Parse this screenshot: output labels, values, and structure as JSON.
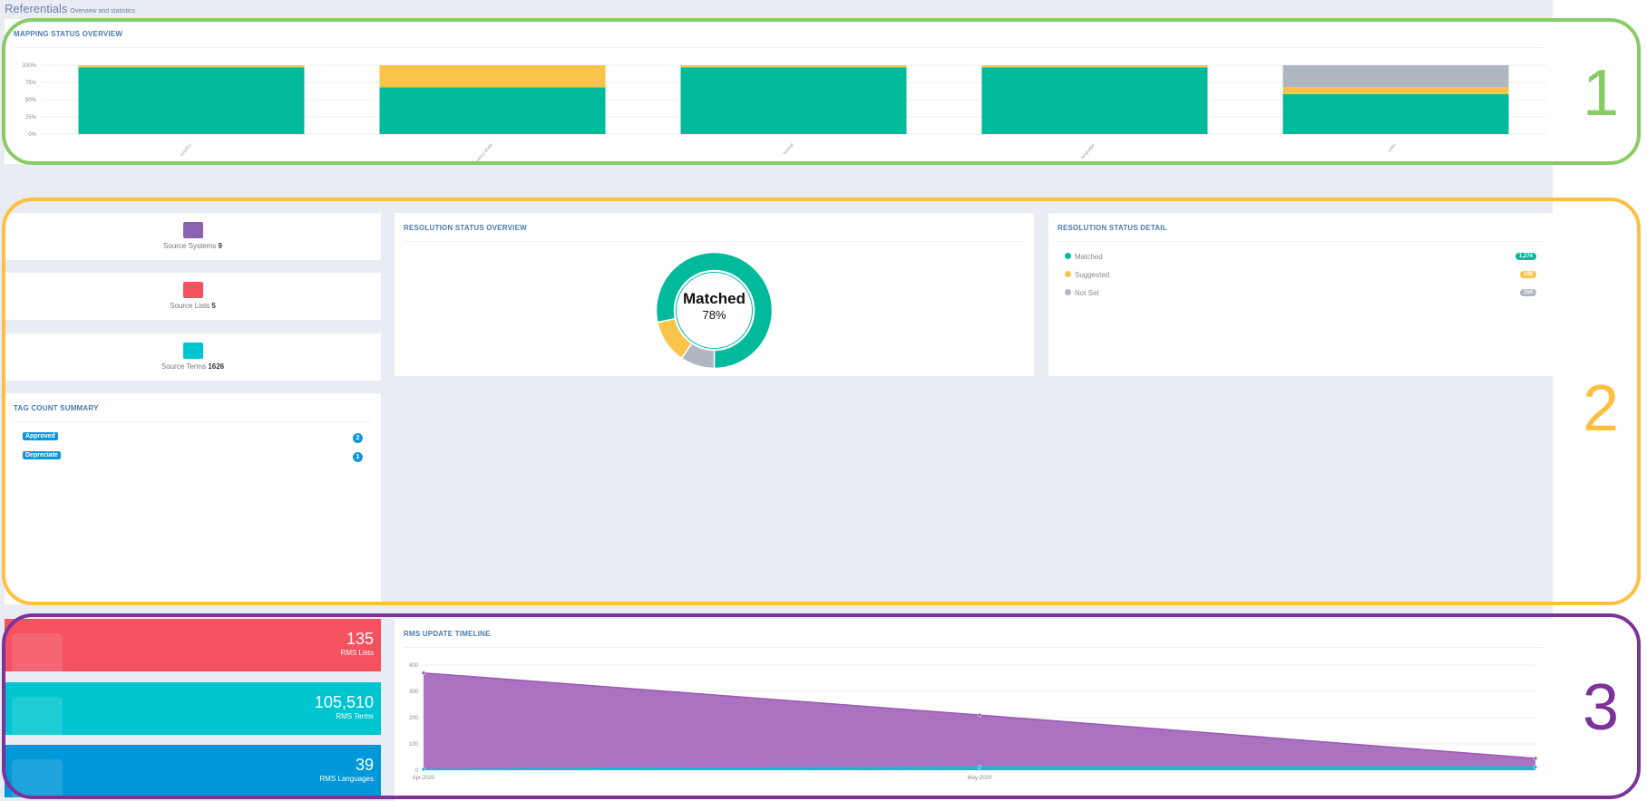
{
  "header": {
    "title": "Referentials",
    "subtitle": "Overview and statistics"
  },
  "mapping": {
    "title": "MAPPING STATUS OVERVIEW"
  },
  "chart_data": [
    {
      "type": "bar",
      "stacked": true,
      "title": "MAPPING STATUS OVERVIEW",
      "categories": [
        "country",
        "currency draw",
        "format",
        "language",
        "units"
      ],
      "series": [
        {
          "color": "#00ba9b",
          "values": [
            97,
            68,
            97,
            97,
            58
          ]
        },
        {
          "color": "#f8c44a",
          "values": [
            3,
            32,
            3,
            3,
            10
          ]
        },
        {
          "color": "#aeb6c1",
          "values": [
            0,
            0,
            0,
            0,
            32
          ]
        }
      ],
      "yticks": [
        "0%",
        "25%",
        "50%",
        "75%",
        "100%"
      ],
      "ylim": [
        0,
        100
      ],
      "grid": true
    },
    {
      "type": "pie",
      "donut": true,
      "title": "RESOLUTION STATUS OVERVIEW",
      "center_label": "Matched",
      "center_value": "78%",
      "slices": [
        {
          "label": "Matched",
          "value": 1274,
          "color": "#00ba9b"
        },
        {
          "label": "Suggested",
          "value": 198,
          "color": "#f8c44a"
        },
        {
          "label": "Not Set",
          "value": 154,
          "color": "#aeb6c1"
        }
      ]
    },
    {
      "type": "area",
      "title": "RMS UPDATE TIMELINE",
      "x": [
        "Apr-2020",
        "May-2020",
        ""
      ],
      "series": [
        {
          "color": "#9b59b6",
          "values": [
            370,
            210,
            45
          ]
        },
        {
          "color": "#00c5d1",
          "values": [
            3,
            12,
            12
          ]
        }
      ],
      "yticks": [
        "0",
        "100",
        "200",
        "300",
        "400"
      ],
      "ylim": [
        0,
        400
      ],
      "grid": true
    }
  ],
  "stats": [
    {
      "label": "Source Systems",
      "value": "9",
      "icon": "laptop-icon",
      "color": "#8a63b0"
    },
    {
      "label": "Source Lists",
      "value": "5",
      "icon": "list-icon",
      "color": "#f5515f"
    },
    {
      "label": "Source Terms",
      "value": "1626",
      "icon": "industry-icon",
      "color": "#00c5d1"
    }
  ],
  "resolution": {
    "title": "RESOLUTION STATUS OVERVIEW",
    "center_label": "Matched",
    "center_value": "78%"
  },
  "detail": {
    "title": "RESOLUTION STATUS DETAIL",
    "items": [
      {
        "label": "Matched",
        "count": "1,274",
        "color": "#00ba9b",
        "icon": "check-circle-icon"
      },
      {
        "label": "Suggested",
        "count": "198",
        "color": "#f8c44a",
        "icon": "lightbulb-icon"
      },
      {
        "label": "Not Set",
        "count": "154",
        "color": "#aeb6c1",
        "icon": "gear-icon"
      }
    ]
  },
  "tags": {
    "title": "TAG COUNT SUMMARY",
    "items": [
      {
        "label": "Approved",
        "count": "2"
      },
      {
        "label": "Depreciate",
        "count": "1"
      }
    ]
  },
  "tiles": [
    {
      "value": "135",
      "label": "RMS Lists",
      "color": "#f5515f",
      "icon": "list-icon"
    },
    {
      "value": "105,510",
      "label": "RMS Terms",
      "color": "#00c5d1",
      "icon": "layers-icon"
    },
    {
      "value": "39",
      "label": "RMS Languages",
      "color": "#0098d9",
      "icon": "translate-icon"
    }
  ],
  "timeline": {
    "title": "RMS UPDATE TIMELINE"
  },
  "annotations": [
    {
      "label": "1",
      "color": "#88cc66"
    },
    {
      "label": "2",
      "color": "#ffbf40"
    },
    {
      "label": "3",
      "color": "#7b3399"
    }
  ]
}
